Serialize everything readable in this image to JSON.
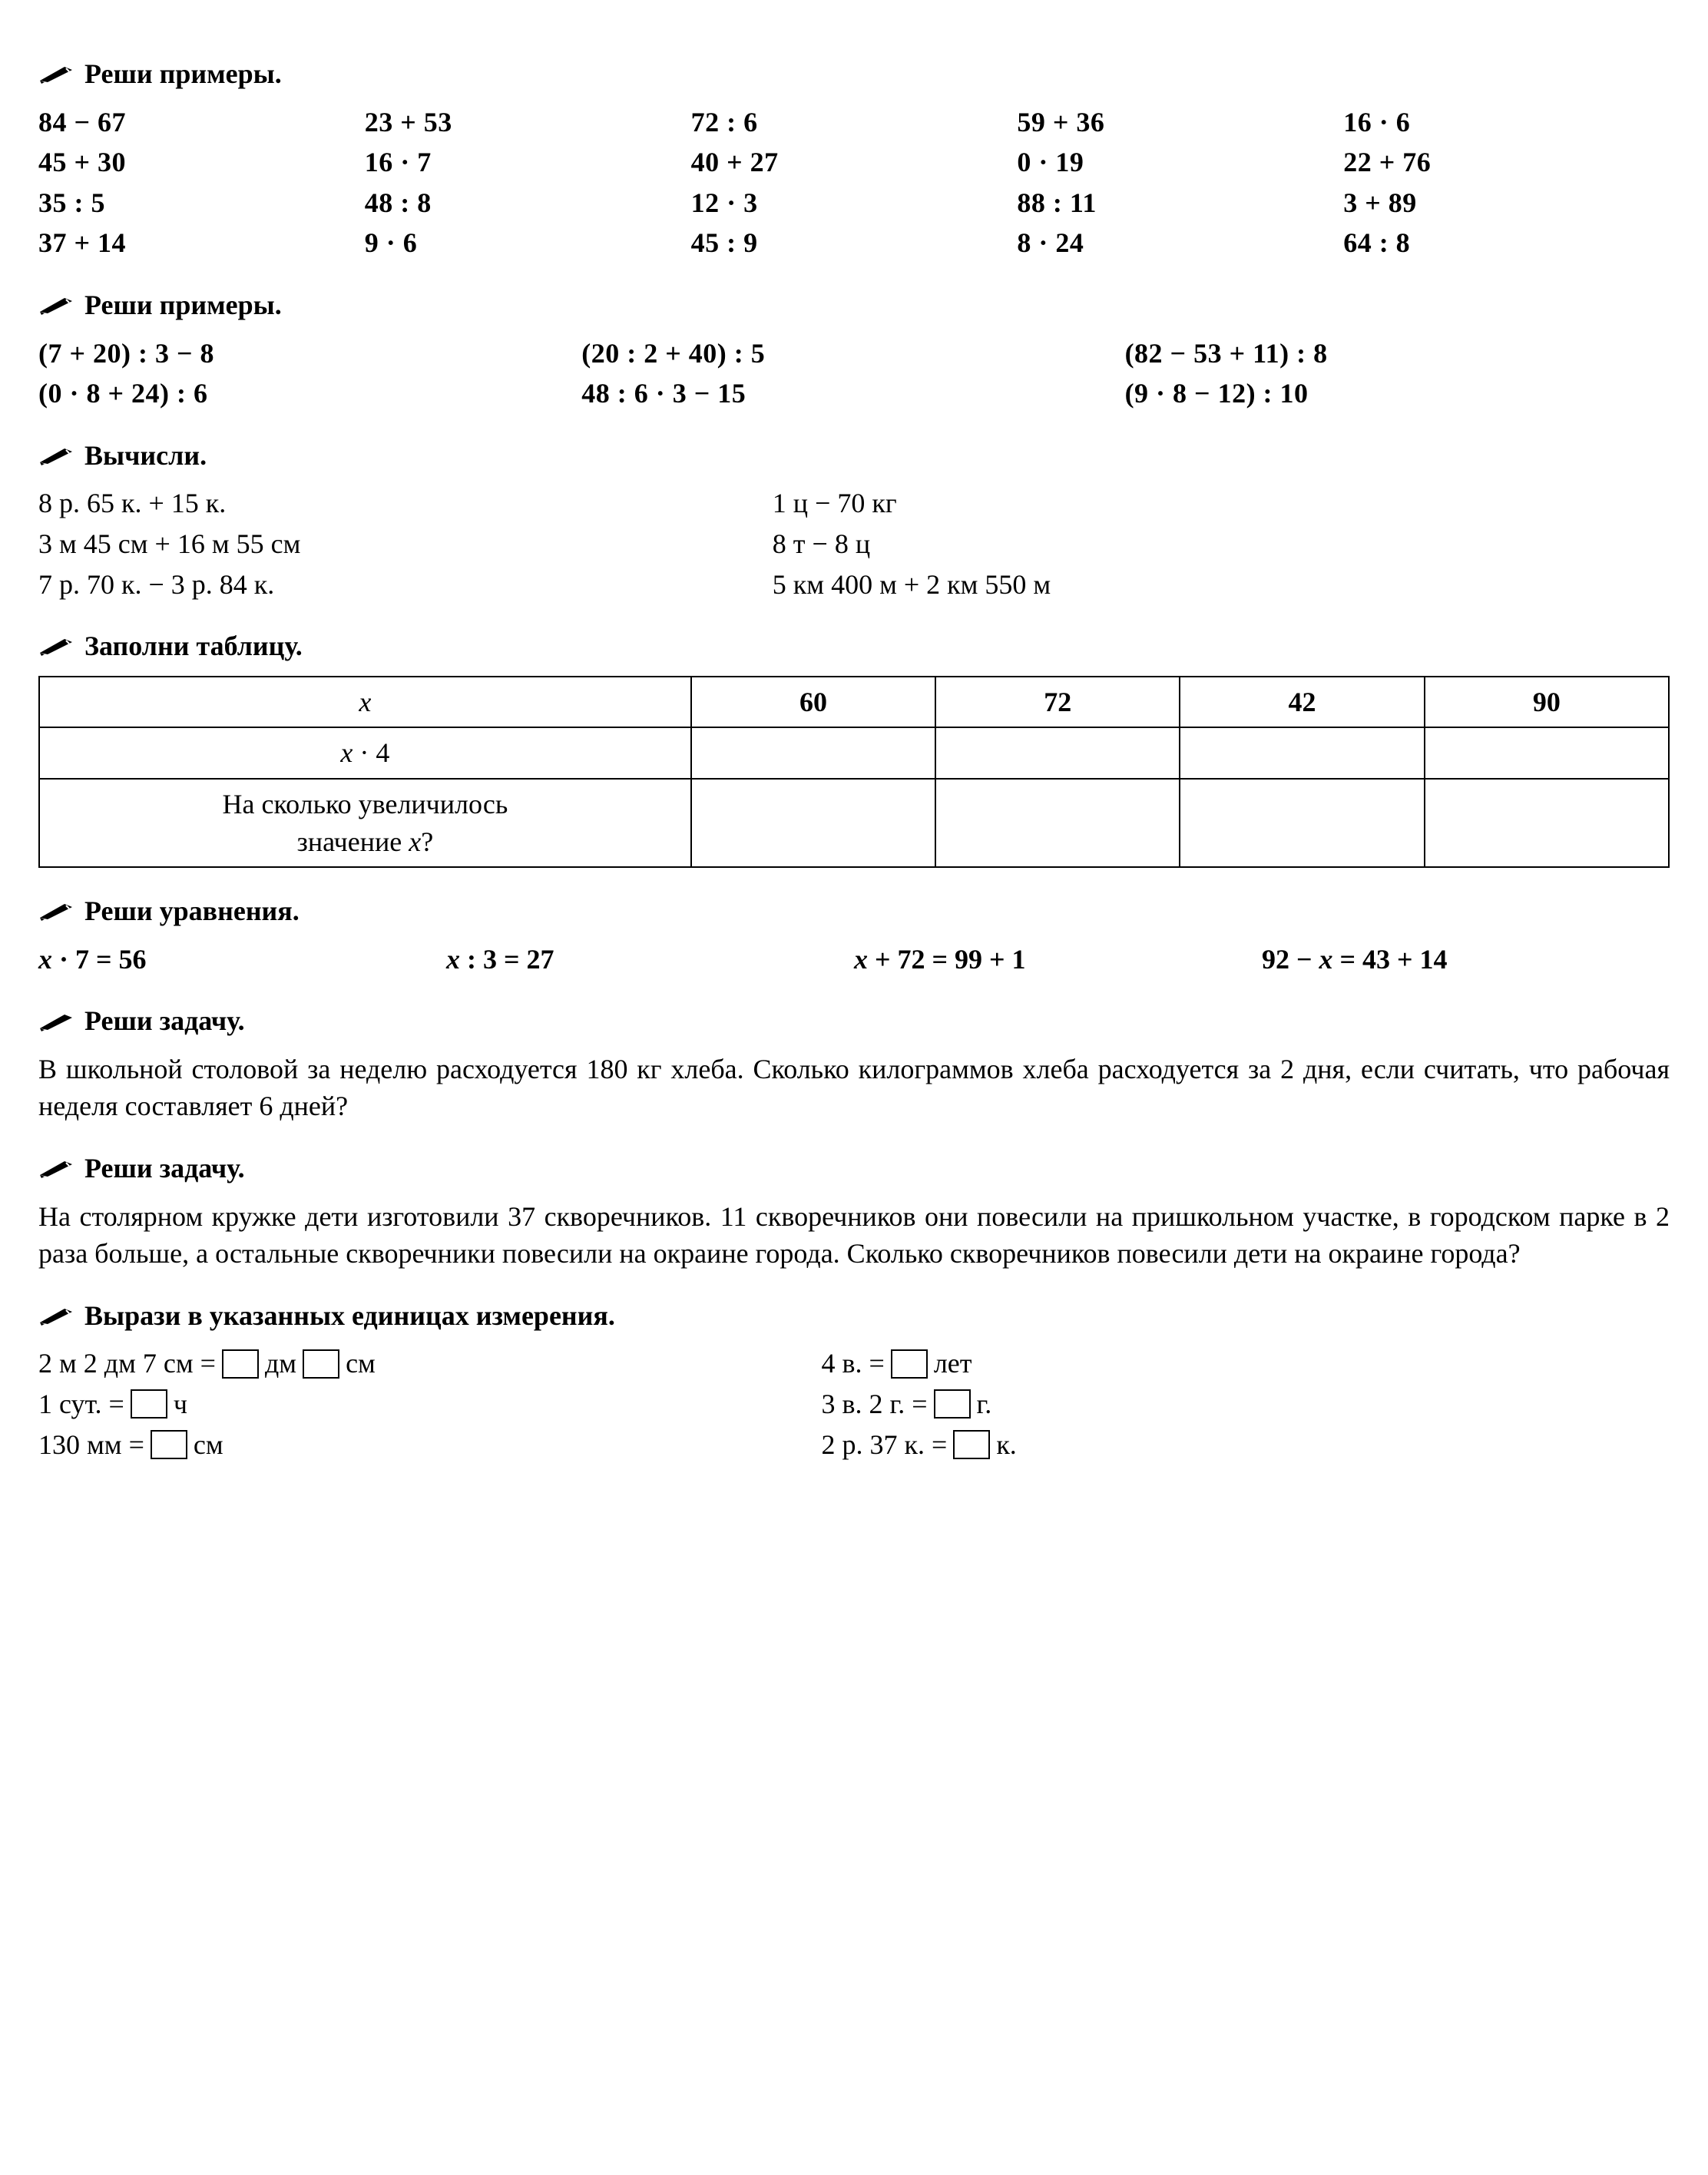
{
  "icon": {
    "name": "pen-icon"
  },
  "section1": {
    "title": "Реши примеры.",
    "cols": [
      [
        "84 − 67",
        "45 + 30",
        "35 : 5",
        "37 + 14"
      ],
      [
        "23 + 53",
        "16 · 7",
        "48 : 8",
        "9 · 6"
      ],
      [
        "72 : 6",
        "40 + 27",
        "12 · 3",
        "45 : 9"
      ],
      [
        "59 + 36",
        "0 · 19",
        "88 : 11",
        "8 · 24"
      ],
      [
        "16 · 6",
        "22 + 76",
        "3 + 89",
        "64 : 8"
      ]
    ]
  },
  "section2": {
    "title": "Реши примеры.",
    "cols": [
      [
        "(7 + 20) : 3 − 8",
        "(0 · 8 + 24) : 6"
      ],
      [
        "(20 : 2 + 40) : 5",
        "48 : 6 · 3 − 15"
      ],
      [
        "(82 − 53 + 11) : 8",
        "(9 · 8 − 12) : 10"
      ]
    ]
  },
  "section3": {
    "title": "Вычисли.",
    "cols": [
      [
        "8 р. 65 к. + 15 к.",
        "3 м 45 см + 16 м 55 см",
        "7 р. 70 к. − 3 р. 84 к."
      ],
      [
        "1 ц − 70 кг",
        "8 т − 8 ц",
        "5 км 400 м + 2 км 550 м"
      ]
    ]
  },
  "section4": {
    "title": "Заполни таблицу.",
    "table": {
      "row1": {
        "head_var": "x",
        "values": [
          "60",
          "72",
          "42",
          "90"
        ]
      },
      "row2": {
        "head_expr_pre": "x",
        "head_expr_post": " · 4",
        "values": [
          "",
          "",
          "",
          ""
        ]
      },
      "row3": {
        "head_line1": "На сколько увеличилось",
        "head_line2_pre": "значение ",
        "head_line2_var": "x",
        "head_line2_post": "?",
        "values": [
          "",
          "",
          "",
          ""
        ]
      }
    }
  },
  "section5": {
    "title": "Реши уравнения.",
    "cols": [
      {
        "var": "x",
        "rest": " · 7 = 56"
      },
      {
        "var": "x",
        "rest": " : 3 = 27"
      },
      {
        "var": "x",
        "rest": " + 72 = 99 + 1"
      },
      {
        "pre": "92 − ",
        "var": "x",
        "rest": " = 43 + 14"
      }
    ]
  },
  "section6": {
    "title": "Реши задачу.",
    "text": "В школьной столовой за неделю расходуется 180 кг хлеба. Сколько килограммов хлеба расходуется за 2 дня, если считать, что рабочая неделя составляет 6 дней?"
  },
  "section7": {
    "title": "Реши задачу.",
    "text": "На столярном кружке дети изготовили 37 скворечников. 11 скворечников они повесили на пришкольном участке, в городском парке в 2 раза больше, а остальные скворечники повесили на окраине города. Сколько скворечников повесили дети на окраине города?"
  },
  "section8": {
    "title": "Вырази в указанных единицах измерения.",
    "left": [
      {
        "parts": [
          "2 м 2 дм 7 см = ",
          "BLANK",
          " дм ",
          "BLANK",
          " см"
        ]
      },
      {
        "parts": [
          "1 сут. = ",
          "BLANK",
          " ч"
        ]
      },
      {
        "parts": [
          "130 мм = ",
          "BLANK",
          " см"
        ]
      }
    ],
    "right": [
      {
        "parts": [
          "4 в. = ",
          "BLANK",
          " лет"
        ]
      },
      {
        "parts": [
          "3 в. 2 г. = ",
          "BLANK",
          " г."
        ]
      },
      {
        "parts": [
          "2 р. 37 к. = ",
          "BLANK",
          " к."
        ]
      }
    ]
  }
}
